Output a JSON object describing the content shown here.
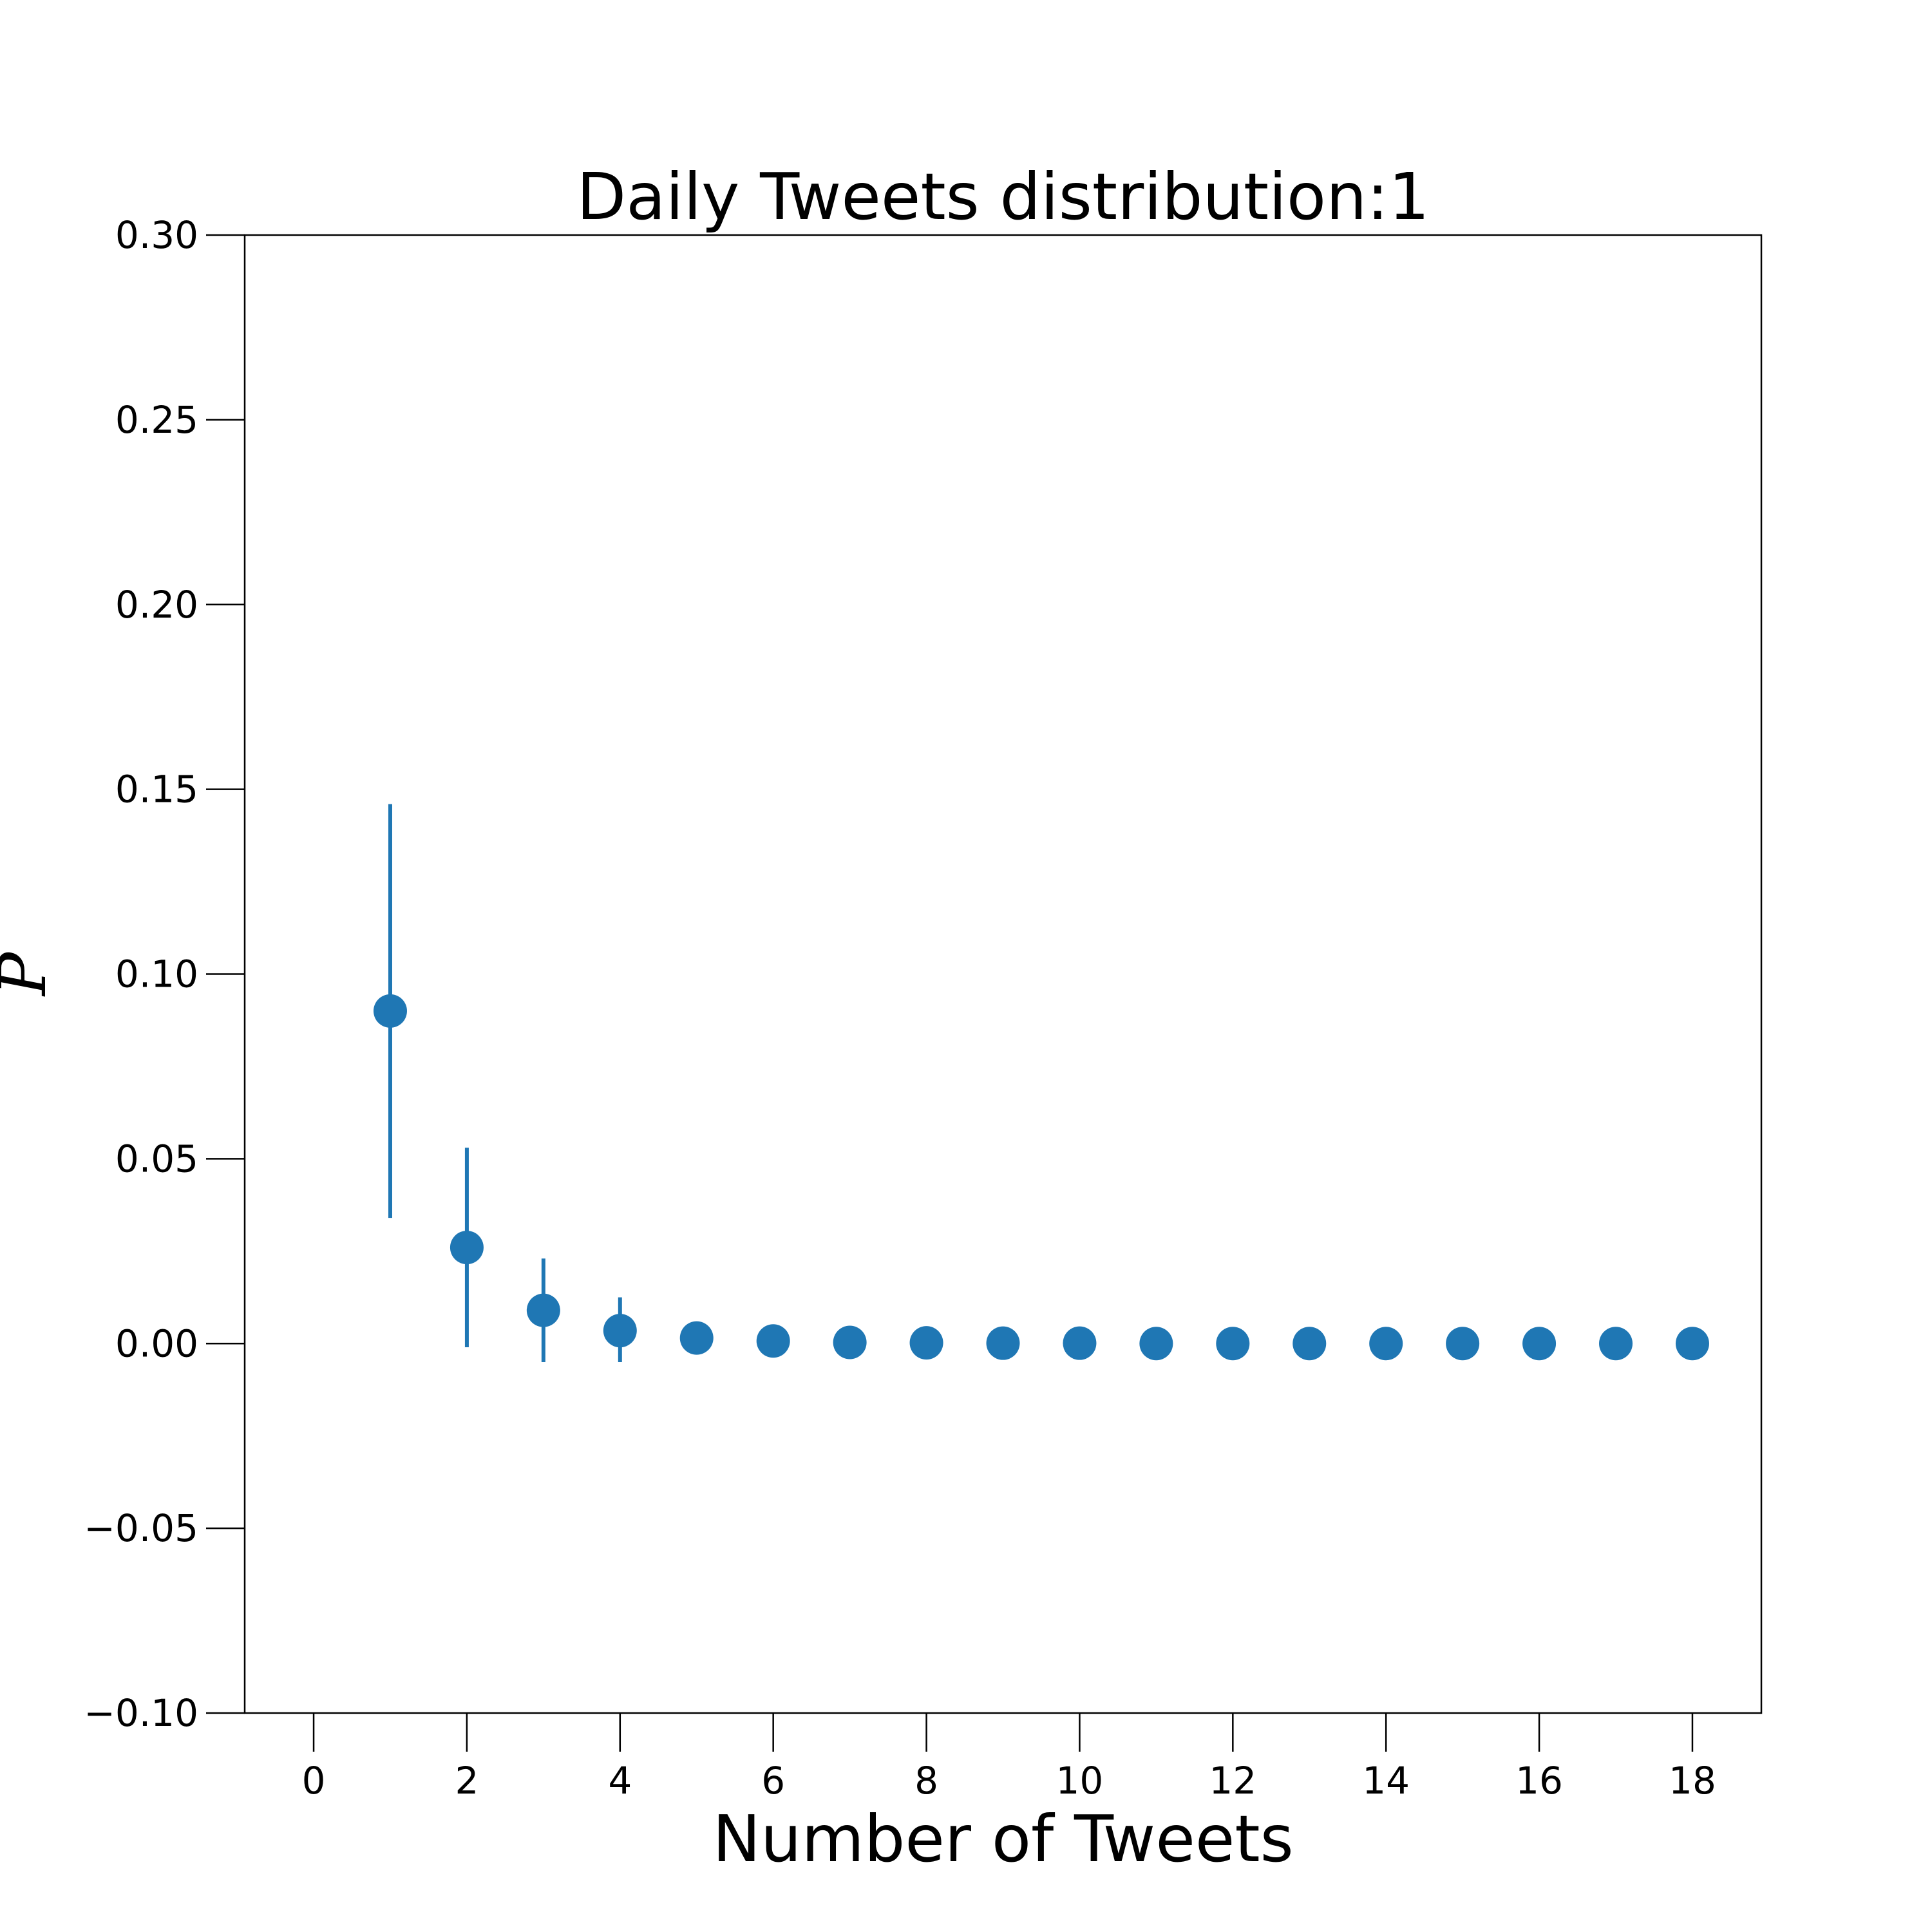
{
  "chart_data": {
    "type": "scatter",
    "title": "Daily Tweets distribution:1",
    "xlabel": "Number of Tweets",
    "ylabel": "P",
    "xlim": [
      -0.9,
      18.9
    ],
    "ylim": [
      -0.1,
      0.3
    ],
    "xticks": [
      0,
      2,
      4,
      6,
      8,
      10,
      12,
      14,
      16,
      18
    ],
    "xtick_labels": [
      "0",
      "2",
      "4",
      "6",
      "8",
      "10",
      "12",
      "14",
      "16",
      "18"
    ],
    "yticks": [
      -0.1,
      -0.05,
      0.0,
      0.05,
      0.1,
      0.15,
      0.2,
      0.25,
      0.3
    ],
    "ytick_labels": [
      "−0.10",
      "−0.05",
      "0.00",
      "0.05",
      "0.10",
      "0.15",
      "0.20",
      "0.25",
      "0.30"
    ],
    "grid": false,
    "marker_color": "#1f77b4",
    "series": [
      {
        "x": [
          1,
          2,
          3,
          4,
          5,
          6,
          7,
          8,
          9,
          10,
          11,
          12,
          13,
          14,
          15,
          16,
          17,
          18
        ],
        "y": [
          0.09,
          0.026,
          0.009,
          0.0035,
          0.0015,
          0.0007,
          0.0003,
          0.0002,
          0.0001,
          0.0001,
          0.0,
          0.0,
          0.0,
          0.0,
          0.0,
          0.0,
          0.0,
          0.0
        ],
        "err_low": [
          0.034,
          -0.001,
          -0.005,
          -0.005,
          -0.002,
          0.0,
          0.0,
          0.0,
          0.0,
          0.0,
          0.0,
          0.0,
          0.0,
          0.0,
          0.0,
          0.0,
          0.0,
          0.0
        ],
        "err_high": [
          0.146,
          0.053,
          0.023,
          0.0125,
          0.005,
          0.0015,
          0.0007,
          0.0004,
          0.0002,
          0.0002,
          0.0001,
          0.0001,
          0.0,
          0.0,
          0.0,
          0.0,
          0.0,
          0.0
        ]
      }
    ]
  }
}
